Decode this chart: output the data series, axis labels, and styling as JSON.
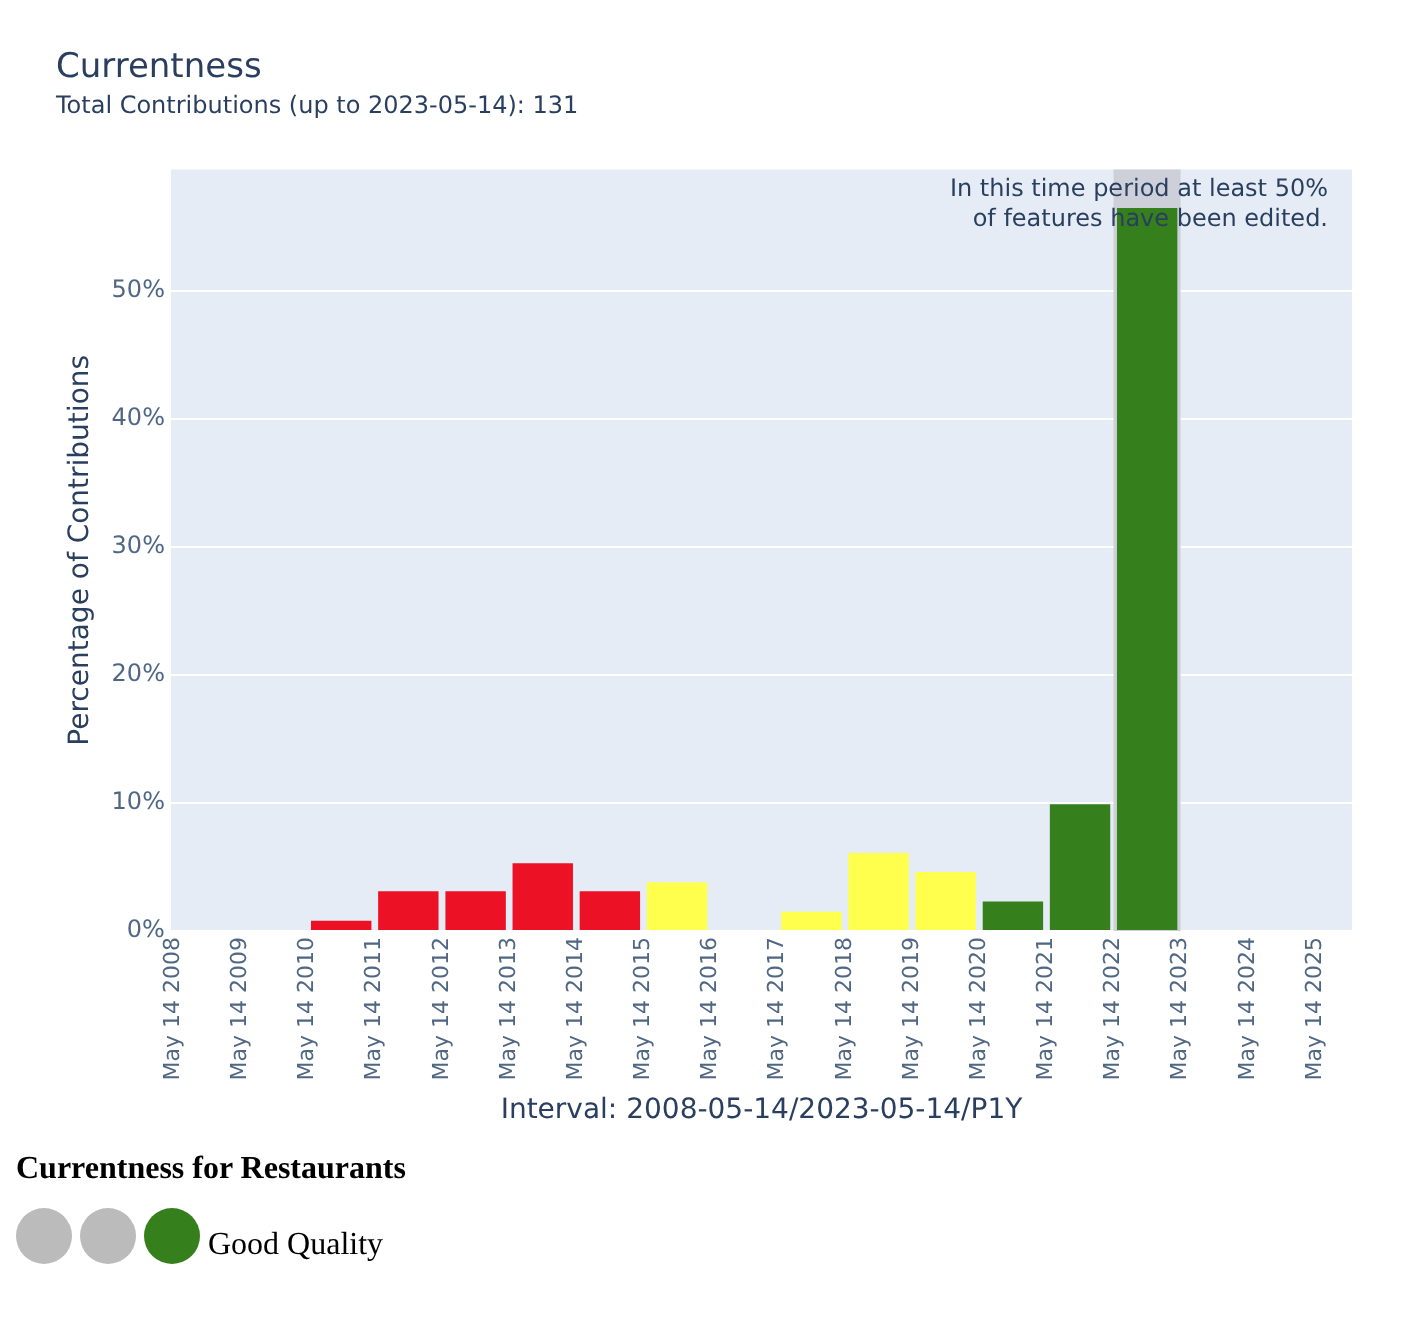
{
  "chart_data": {
    "type": "bar",
    "title": "Currentness",
    "subtitle": "Total Contributions (up to 2023-05-14): 131",
    "xlabel": "Interval: 2008-05-14/2023-05-14/P1Y",
    "ylabel": "Percentage of Contributions",
    "x": [
      "2008-11-13",
      "2009-11-13",
      "2010-11-13",
      "2011-11-13",
      "2012-11-13",
      "2013-11-13",
      "2014-11-13",
      "2015-11-13",
      "2016-11-13",
      "2017-11-13",
      "2018-11-13",
      "2019-11-13",
      "2020-11-13",
      "2021-11-13",
      "2022-11-13"
    ],
    "values": [
      0,
      0,
      0.8,
      3.1,
      3.1,
      5.3,
      3.1,
      3.8,
      0,
      1.5,
      6.1,
      4.6,
      2.3,
      9.9,
      56.5
    ],
    "colors": [
      "#ec1124",
      "#ec1124",
      "#ec1124",
      "#ec1124",
      "#ec1124",
      "#ec1124",
      "#ec1124",
      "#ffff4d",
      "#ffff4d",
      "#ffff4d",
      "#ffff4d",
      "#ffff4d",
      "#357f1d",
      "#357f1d",
      "#357f1d"
    ],
    "xlim": [
      "2008-05-01",
      "2025-12-01"
    ],
    "xticks": [
      {
        "value": "2008-05-14",
        "label": "May 14 2008"
      },
      {
        "value": "2009-05-14",
        "label": "May 14 2009"
      },
      {
        "value": "2010-05-14",
        "label": "May 14 2010"
      },
      {
        "value": "2011-05-14",
        "label": "May 14 2011"
      },
      {
        "value": "2012-05-14",
        "label": "May 14 2012"
      },
      {
        "value": "2013-05-14",
        "label": "May 14 2013"
      },
      {
        "value": "2014-05-14",
        "label": "May 14 2014"
      },
      {
        "value": "2015-05-14",
        "label": "May 14 2015"
      },
      {
        "value": "2016-05-14",
        "label": "May 14 2016"
      },
      {
        "value": "2017-05-14",
        "label": "May 14 2017"
      },
      {
        "value": "2018-05-14",
        "label": "May 14 2018"
      },
      {
        "value": "2019-05-14",
        "label": "May 14 2019"
      },
      {
        "value": "2020-05-14",
        "label": "May 14 2020"
      },
      {
        "value": "2021-05-14",
        "label": "May 14 2021"
      },
      {
        "value": "2022-05-14",
        "label": "May 14 2022"
      },
      {
        "value": "2023-05-14",
        "label": "May 14 2023"
      },
      {
        "value": "2024-05-14",
        "label": "May 14 2024"
      },
      {
        "value": "2025-05-14",
        "label": "May 14 2025"
      }
    ],
    "ylim": [
      0,
      59.5
    ],
    "yticks": [
      {
        "value": 0,
        "label": "0%"
      },
      {
        "value": 10,
        "label": "10%"
      },
      {
        "value": 20,
        "label": "20%"
      },
      {
        "value": 30,
        "label": "30%"
      },
      {
        "value": 40,
        "label": "40%"
      },
      {
        "value": 50,
        "label": "50%"
      }
    ],
    "bands": [
      {
        "axis": "x",
        "from": "2022-05-14",
        "to": "2023-05-14",
        "color": "#cdd0d8"
      }
    ],
    "annotations": [
      "In this time period at least 50%\nof features have been edited.",
      "Currentness for Restaurants",
      "Good Quality"
    ],
    "grid": "y",
    "legend": false
  }
}
